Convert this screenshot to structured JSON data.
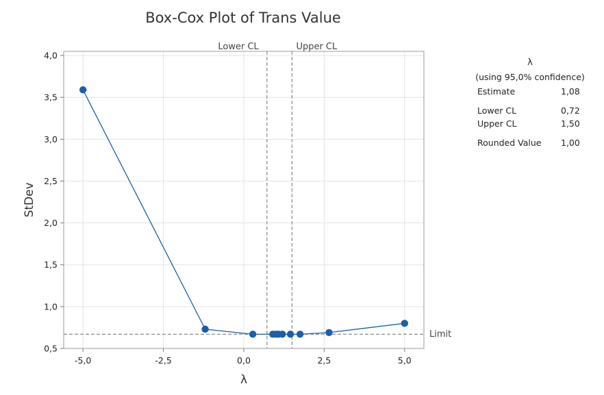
{
  "chart_data": {
    "type": "line",
    "title": "Box-Cox Plot of Trans Value",
    "xlabel": "λ",
    "ylabel": "StDev",
    "xlim": [
      -5.6,
      5.6
    ],
    "ylim": [
      0.5,
      4.05
    ],
    "xticks": [
      -5.0,
      -2.5,
      0.0,
      2.5,
      5.0
    ],
    "xtick_labels": [
      "-5,0",
      "-2,5",
      "0,0",
      "2,5",
      "5,0"
    ],
    "yticks": [
      0.5,
      1.0,
      1.5,
      2.0,
      2.5,
      3.0,
      3.5,
      4.0
    ],
    "ytick_labels": [
      "0,5",
      "1,0",
      "1,5",
      "2,0",
      "2,5",
      "3,0",
      "3,5",
      "4,0"
    ],
    "grid": true,
    "series": [
      {
        "x": [
          -5.0,
          -1.2,
          0.28,
          0.9,
          1.0,
          1.08,
          1.2,
          1.45,
          1.75,
          2.65,
          5.0
        ],
        "y": [
          3.59,
          0.73,
          0.67,
          0.67,
          0.67,
          0.67,
          0.67,
          0.67,
          0.67,
          0.69,
          0.8
        ],
        "color": "#1a5fa8"
      }
    ],
    "reference_lines": [
      {
        "orientation": "vertical",
        "x": 0.72,
        "label": "Lower CL"
      },
      {
        "orientation": "vertical",
        "x": 1.5,
        "label": "Upper CL"
      },
      {
        "orientation": "horizontal",
        "y": 0.67,
        "label": "Limit"
      }
    ]
  },
  "stats_panel": {
    "heading": "λ",
    "subheading": "(using 95,0% confidence)",
    "rows": [
      {
        "label": "Estimate",
        "value": "1,08"
      },
      {
        "label": "Lower CL",
        "value": "0,72"
      },
      {
        "label": "Upper CL",
        "value": "1,50"
      },
      {
        "label": "Rounded Value",
        "value": "1,00"
      }
    ]
  }
}
